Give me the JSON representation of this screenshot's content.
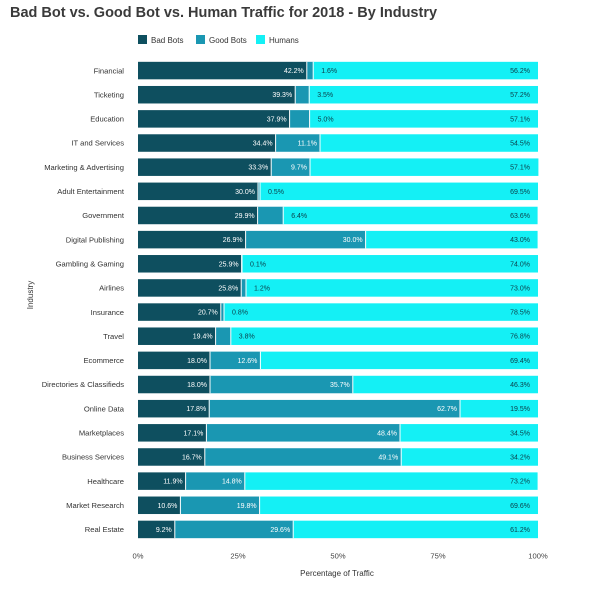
{
  "chart_data": {
    "type": "bar",
    "orientation": "horizontal",
    "stacked": true,
    "title": "Bad Bot vs. Good Bot vs. Human Traffic for 2018 - By Industry",
    "xlabel": "Percentage of Traffic",
    "ylabel": "Industry",
    "xlim": [
      0,
      100
    ],
    "x_ticks": [
      "0%",
      "25%",
      "50%",
      "75%",
      "100%"
    ],
    "legend_position": "top-left",
    "grid": false,
    "categories": [
      "Financial",
      "Ticketing",
      "Education",
      "IT and Services",
      "Marketing & Advertising",
      "Adult Entertainment",
      "Government",
      "Digital Publishing",
      "Gambling & Gaming",
      "Airlines",
      "Insurance",
      "Travel",
      "Ecommerce",
      "Directories & Classifieds",
      "Online Data",
      "Marketplaces",
      "Business Services",
      "Healthcare",
      "Market Research",
      "Real Estate"
    ],
    "series": [
      {
        "name": "Bad Bots",
        "color": "#0e4f5f",
        "label_color": "#ffffff",
        "values": [
          42.2,
          39.3,
          37.9,
          34.4,
          33.3,
          30.0,
          29.9,
          26.9,
          25.9,
          25.8,
          20.7,
          19.4,
          18.0,
          18.0,
          17.8,
          17.1,
          16.7,
          11.9,
          10.6,
          9.2
        ],
        "labels": [
          "42.2%",
          "39.3%",
          "37.9%",
          "34.4%",
          "33.3%",
          "30.0%",
          "29.9%",
          "26.9%",
          "25.9%",
          "25.8%",
          "20.7%",
          "19.4%",
          "18.0%",
          "18.0%",
          "17.8%",
          "17.1%",
          "16.7%",
          "11.9%",
          "10.6%",
          "9.2%"
        ]
      },
      {
        "name": "Good Bots",
        "color": "#1a97b2",
        "label_color": "#ffffff",
        "values": [
          1.6,
          3.5,
          5.0,
          11.1,
          9.7,
          0.5,
          6.4,
          30.0,
          0.1,
          1.2,
          0.8,
          3.8,
          12.6,
          35.7,
          62.7,
          48.4,
          49.1,
          14.8,
          19.8,
          29.6
        ],
        "labels": [
          "1.6%",
          "3.5%",
          "5.0%",
          "11.1%",
          "9.7%",
          "0.5%",
          "6.4%",
          "30.0%",
          "0.1%",
          "1.2%",
          "0.8%",
          "3.8%",
          "12.6%",
          "35.7%",
          "62.7%",
          "48.4%",
          "49.1%",
          "14.8%",
          "19.8%",
          "29.6%"
        ]
      },
      {
        "name": "Humans",
        "color": "#14f0f5",
        "label_color": "#0b3d48",
        "values": [
          56.2,
          57.2,
          57.1,
          54.5,
          57.1,
          69.5,
          63.6,
          43.0,
          74.0,
          73.0,
          78.5,
          76.8,
          69.4,
          46.3,
          19.5,
          34.5,
          34.2,
          73.2,
          69.6,
          61.2
        ],
        "labels": [
          "56.2%",
          "57.2%",
          "57.1%",
          "54.5%",
          "57.1%",
          "69.5%",
          "63.6%",
          "43.0%",
          "74.0%",
          "73.0%",
          "78.5%",
          "76.8%",
          "69.4%",
          "46.3%",
          "19.5%",
          "34.5%",
          "34.2%",
          "73.2%",
          "69.6%",
          "61.2%"
        ]
      }
    ]
  }
}
